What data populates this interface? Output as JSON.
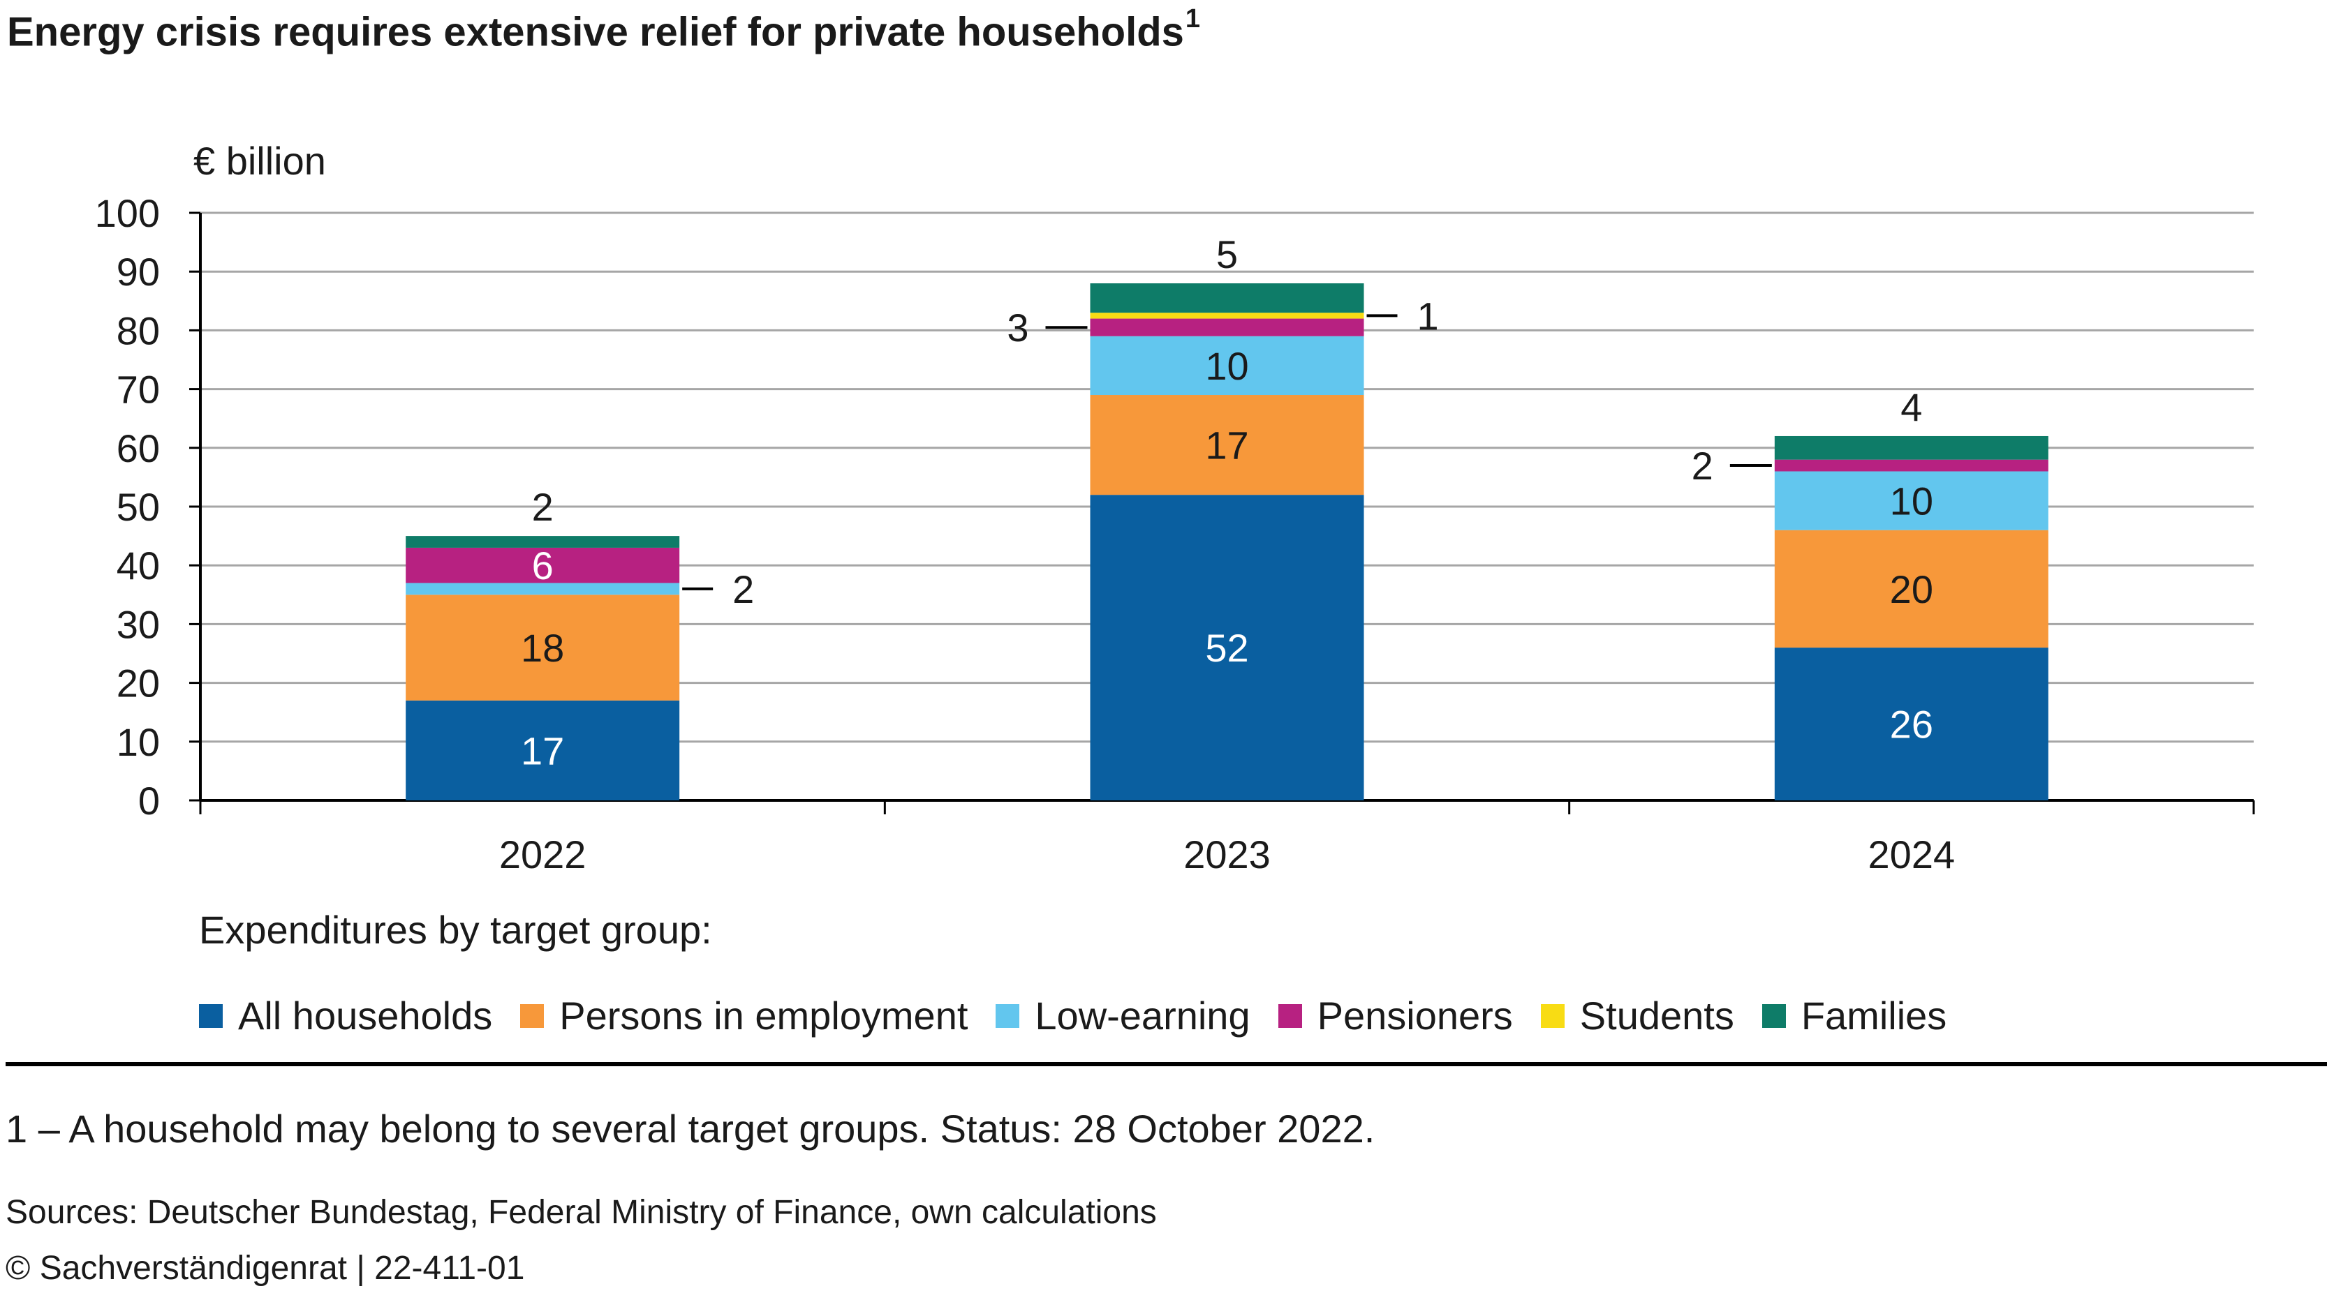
{
  "title": "Energy crisis requires extensive relief for private households",
  "title_superscript": "1",
  "legend_heading": "Expenditures by target group:",
  "footnote": "1 – A household may belong to several target groups. Status: 28 October 2022.",
  "sources": "Sources: Deutscher Bundestag, Federal Ministry of Finance, own calculations",
  "copyright": "© Sachverständigenrat | 22-411-01",
  "chart_data": {
    "type": "bar",
    "stacked": true,
    "ylabel": "€ billion",
    "ylim": [
      0,
      100
    ],
    "yticks": [
      0,
      10,
      20,
      30,
      40,
      50,
      60,
      70,
      80,
      90,
      100
    ],
    "grid": true,
    "legend_position": "bottom",
    "categories": [
      "2022",
      "2023",
      "2024"
    ],
    "series": [
      {
        "name": "All households",
        "color": "#0a5fa0",
        "values": [
          17,
          52,
          26
        ],
        "labels": [
          "17",
          "52",
          "26"
        ]
      },
      {
        "name": "Persons in employment",
        "color": "#f7983a",
        "values": [
          18,
          17,
          20
        ],
        "labels": [
          "18",
          "17",
          "20"
        ]
      },
      {
        "name": "Low-earning",
        "color": "#62c6ee",
        "values": [
          2,
          10,
          10
        ],
        "labels": [
          "2",
          "10",
          "10"
        ]
      },
      {
        "name": "Pensioners",
        "color": "#b72181",
        "values": [
          6,
          3,
          2
        ],
        "labels": [
          "6",
          "3",
          "2"
        ]
      },
      {
        "name": "Students",
        "color": "#f8dc14",
        "values": [
          0,
          1,
          0
        ],
        "labels": [
          "",
          "1",
          ""
        ]
      },
      {
        "name": "Families",
        "color": "#0e7c68",
        "values": [
          2,
          5,
          4
        ],
        "labels": [
          "2",
          "5",
          "4"
        ]
      }
    ]
  }
}
